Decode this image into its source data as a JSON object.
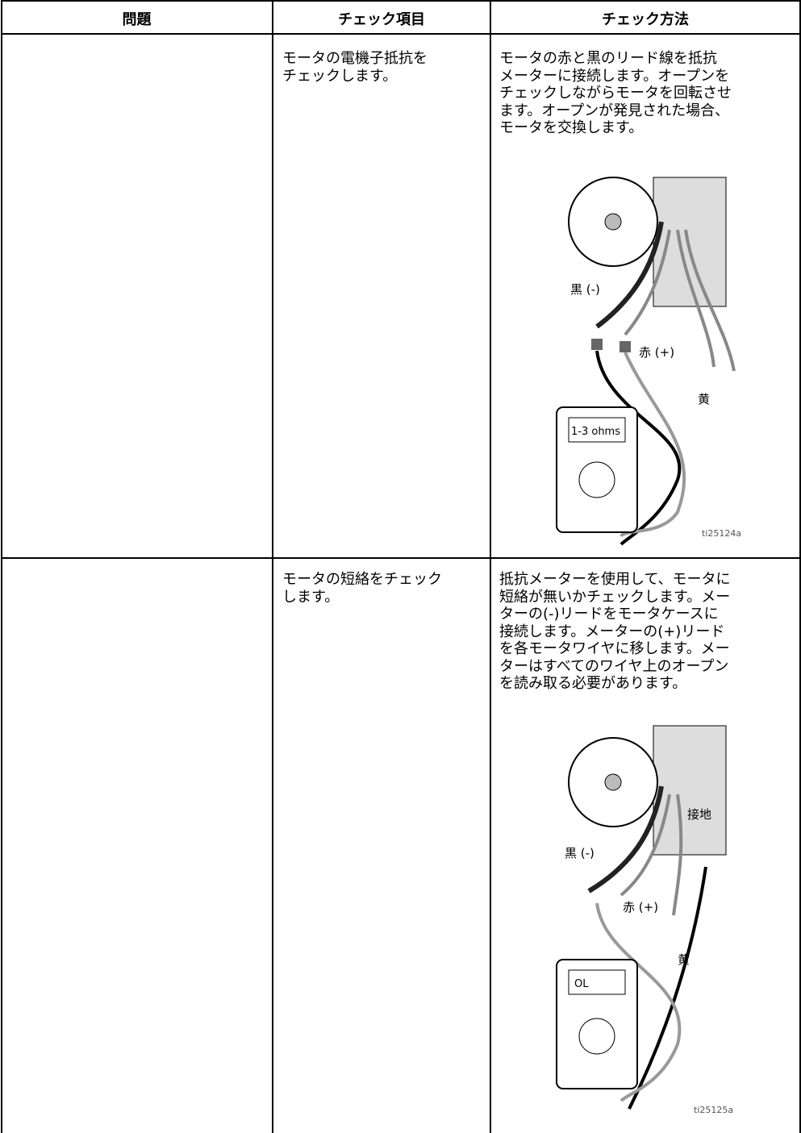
{
  "table": {
    "header": [
      "問題",
      "チェック項目",
      "チェック方法"
    ],
    "rows": [
      {
        "problem": "",
        "check_item": [
          "モータの電機子抵抗を",
          "チェックします。"
        ],
        "method": [
          "モータの赤と黒のリード線を抵抗",
          "メーターに接続します。オープンを",
          "チェックしながらモータを回転させ",
          "ます。オープンが発見された場合、",
          "モータを交換します。"
        ],
        "figure": {
          "black": "黒 (-)",
          "red": "赤 (+)",
          "yellow": "黄",
          "display": "1-3 ohms",
          "id": "ti25124a"
        }
      },
      {
        "problem": "",
        "check_item": [
          "モータの短絡をチェック",
          "します。"
        ],
        "method": [
          "抵抗メーターを使用して、モータに",
          "短絡が無いかチェックします。メー",
          "ターの(-)リードをモータケースに",
          "接続します。メーターの(+)リード",
          "を各モータワイヤに移します。メー",
          "ターはすべてのワイヤ上のオープン",
          "を読み取る必要があります。"
        ],
        "figure": {
          "ground": "接地",
          "black": "黒 (-)",
          "red": "赤 (+)",
          "yellow": "黄",
          "display": "OL",
          "id": "ti25125a"
        }
      }
    ]
  }
}
